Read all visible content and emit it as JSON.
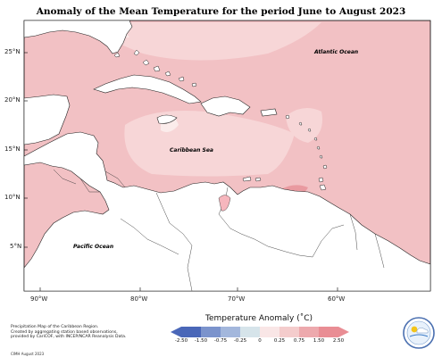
{
  "title": "Anomaly of the Mean Temperature for the period June to August 2023",
  "axes": {
    "lat_labels": [
      "25°N",
      "20°N",
      "15°N",
      "10°N",
      "5°N"
    ],
    "lon_labels": [
      "90°W",
      "80°W",
      "70°W",
      "60°W"
    ]
  },
  "regions": {
    "atlantic": "Atlantic Ocean",
    "caribbean": "Caribbean Sea",
    "pacific": "Pacific Ocean"
  },
  "legend": {
    "title": "Temperature Anomaly (˚C)",
    "ticks": [
      "-2.50",
      "-1.50",
      "-0.75",
      "-0.25",
      "0",
      "0.25",
      "0.75",
      "1.50",
      "2.50"
    ],
    "colors": [
      "#4a67b8",
      "#7b93cc",
      "#a3b7dc",
      "#d6e4ea",
      "#f9e6e6",
      "#f4cccc",
      "#eda9ad",
      "#e98d94"
    ]
  },
  "footer": {
    "line1": "Precipitation Map of the Caribbean Region.",
    "line2": "Created by aggregating station based observations,",
    "line3": "provided by CariCOF, with INCEP/NCAR Reanalysis Data.",
    "credit": "CIMH August 2023"
  },
  "logo": {
    "text": "CIMH"
  }
}
